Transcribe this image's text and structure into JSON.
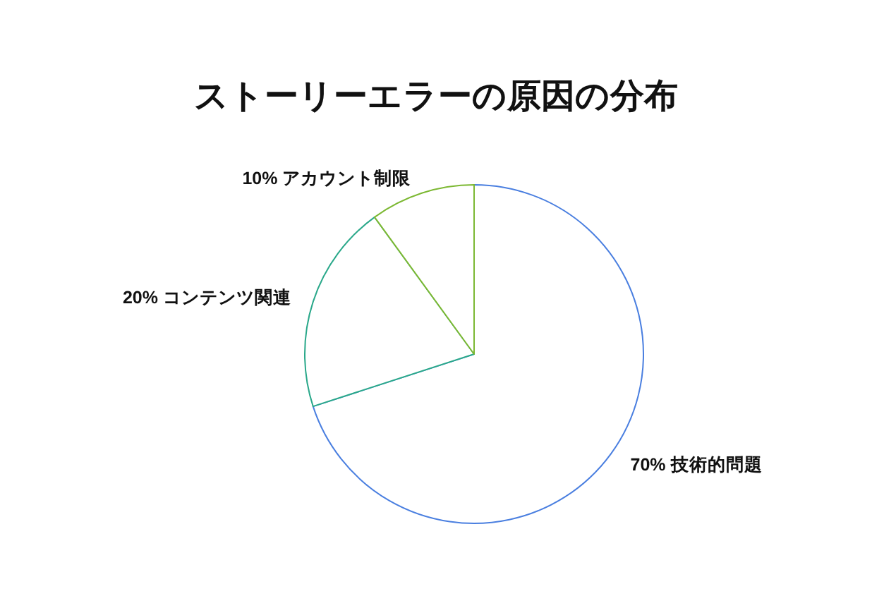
{
  "chart_data": {
    "type": "pie",
    "title": "ストーリーエラーの原因の分布",
    "categories": [
      "技術的問題",
      "コンテンツ関連",
      "アカウント制限"
    ],
    "values": [
      70,
      20,
      10
    ],
    "colors": [
      "#4a7fe0",
      "#2aa88a",
      "#7cb832"
    ],
    "value_labels": [
      "70%",
      "20%",
      "10%"
    ]
  }
}
